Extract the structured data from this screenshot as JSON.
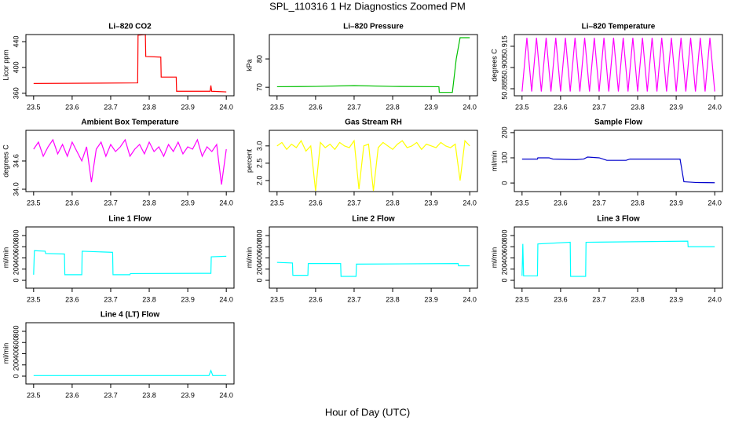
{
  "title": "SPL_110316  1 Hz Diagnostics Zoomed PM",
  "xlabel": "Hour of Day (UTC)",
  "chart_data": [
    {
      "type": "line",
      "title": "Li–820 CO2",
      "ylabel": "Licor ppm",
      "color": "#ff0000",
      "x": [
        23.5,
        23.77,
        23.771,
        23.79,
        23.791,
        23.83,
        23.831,
        23.87,
        23.871,
        23.958,
        23.96,
        23.962,
        24.0
      ],
      "values": [
        375,
        376,
        450,
        451,
        417,
        416,
        385,
        385,
        363,
        363,
        372,
        363,
        362
      ],
      "xlim": [
        23.48,
        24.02
      ],
      "ylim": [
        356,
        451
      ],
      "xticks": [
        23.5,
        23.6,
        23.7,
        23.8,
        23.9,
        {
          "value": 24,
          "label": "24.0"
        }
      ],
      "yticks": [
        360,
        400,
        440
      ]
    },
    {
      "type": "line",
      "title": "Li–820 Pressure",
      "ylabel": "kPa",
      "color": "#00c000",
      "x": [
        23.5,
        23.6,
        23.7,
        23.8,
        23.92,
        23.921,
        23.955,
        23.965,
        23.975,
        24.0
      ],
      "values": [
        70.2,
        70.3,
        70.6,
        70.3,
        70.2,
        68.2,
        68.2,
        80,
        87.5,
        87.5
      ],
      "xlim": [
        23.48,
        24.02
      ],
      "ylim": [
        67,
        88.6
      ],
      "xticks": [
        23.5,
        23.6,
        23.7,
        23.8,
        23.9,
        {
          "value": 24,
          "label": "24.0"
        }
      ],
      "yticks": [
        70,
        80
      ]
    },
    {
      "type": "line",
      "title": "Li–820 Temperature",
      "ylabel": "degrees C",
      "color": "#ff00ff",
      "x": [
        23.5,
        23.5125,
        23.525,
        23.5375,
        23.55,
        23.5625,
        23.575,
        23.5875,
        23.6,
        23.6125,
        23.625,
        23.6375,
        23.65,
        23.6625,
        23.675,
        23.6875,
        23.7,
        23.7125,
        23.725,
        23.7375,
        23.75,
        23.7625,
        23.775,
        23.7875,
        23.8,
        23.8125,
        23.825,
        23.8375,
        23.85,
        23.8625,
        23.875,
        23.8875,
        23.9,
        23.9125,
        23.925,
        23.9375,
        23.95,
        23.9625,
        23.975,
        23.9875,
        24.0
      ],
      "values": [
        50.883,
        50.921,
        50.883,
        50.921,
        50.883,
        50.921,
        50.883,
        50.921,
        50.883,
        50.921,
        50.883,
        50.921,
        50.883,
        50.921,
        50.883,
        50.921,
        50.883,
        50.921,
        50.883,
        50.921,
        50.883,
        50.921,
        50.883,
        50.921,
        50.883,
        50.921,
        50.883,
        50.921,
        50.883,
        50.921,
        50.883,
        50.921,
        50.883,
        50.921,
        50.883,
        50.921,
        50.883,
        50.921,
        50.883,
        50.921,
        50.883
      ],
      "xlim": [
        23.48,
        24.02
      ],
      "ylim": [
        50.88,
        50.9233
      ],
      "xticks": [
        23.5,
        23.6,
        23.7,
        23.8,
        23.9,
        {
          "value": 24,
          "label": "24.0"
        }
      ],
      "yticks": [
        50.885,
        {
          "value": 50.9,
          "label": "50.900"
        },
        50.915
      ]
    },
    {
      "type": "line",
      "title": "Ambient Box Temperature",
      "ylabel": "degrees C",
      "color": "#ff00ff",
      "x": [
        23.5,
        23.5125,
        23.525,
        23.5375,
        23.55,
        23.5625,
        23.575,
        23.5875,
        23.6,
        23.6125,
        23.625,
        23.6375,
        23.65,
        23.6625,
        23.675,
        23.6875,
        23.7,
        23.7125,
        23.725,
        23.7375,
        23.75,
        23.7625,
        23.775,
        23.7875,
        23.8,
        23.8125,
        23.825,
        23.8375,
        23.85,
        23.8625,
        23.875,
        23.8875,
        23.9,
        23.9125,
        23.925,
        23.9375,
        23.95,
        23.9625,
        23.975,
        23.9875,
        24.0
      ],
      "values": [
        34.85,
        35.0,
        34.7,
        34.9,
        35.05,
        34.75,
        34.95,
        34.7,
        35.0,
        34.8,
        34.6,
        34.9,
        34.15,
        34.85,
        35.0,
        34.7,
        34.95,
        34.8,
        34.9,
        35.05,
        34.7,
        34.85,
        34.95,
        34.75,
        35.0,
        34.8,
        34.9,
        34.7,
        34.95,
        34.8,
        35.0,
        34.75,
        34.9,
        34.85,
        35.05,
        34.7,
        34.9,
        34.8,
        34.95,
        34.1,
        34.85
      ],
      "xlim": [
        23.48,
        24.02
      ],
      "ylim": [
        33.95,
        35.25
      ],
      "xticks": [
        23.5,
        23.6,
        23.7,
        23.8,
        23.9,
        {
          "value": 24,
          "label": "24.0"
        }
      ],
      "yticks": [
        {
          "value": 34,
          "label": "34.0"
        },
        34.6
      ]
    },
    {
      "type": "line",
      "title": "Gas Stream RH",
      "ylabel": "percent",
      "color": "#ffff00",
      "x": [
        23.5,
        23.5125,
        23.525,
        23.5375,
        23.55,
        23.5625,
        23.575,
        23.5875,
        23.6,
        23.6125,
        23.625,
        23.6375,
        23.65,
        23.6625,
        23.675,
        23.6875,
        23.7,
        23.7125,
        23.725,
        23.7375,
        23.75,
        23.7625,
        23.775,
        23.7875,
        23.8,
        23.8125,
        23.825,
        23.8375,
        23.85,
        23.8625,
        23.875,
        23.8875,
        23.9,
        23.9125,
        23.925,
        23.9375,
        23.95,
        23.9625,
        23.975,
        23.9875,
        24.0
      ],
      "values": [
        3.0,
        3.1,
        2.9,
        3.05,
        2.95,
        3.15,
        2.85,
        3.0,
        1.7,
        3.1,
        2.95,
        3.05,
        2.9,
        3.1,
        3.0,
        2.95,
        3.15,
        1.75,
        3.0,
        3.05,
        1.7,
        2.95,
        3.1,
        3.0,
        2.9,
        3.05,
        3.15,
        2.95,
        3.0,
        3.1,
        2.9,
        3.05,
        3.0,
        2.95,
        3.1,
        3.0,
        2.95,
        3.05,
        2.0,
        3.15,
        3.0
      ],
      "xlim": [
        23.48,
        24.02
      ],
      "ylim": [
        1.68,
        3.45
      ],
      "xticks": [
        23.5,
        23.6,
        23.7,
        23.8,
        23.9,
        {
          "value": 24,
          "label": "24.0"
        }
      ],
      "yticks": [
        {
          "value": 2,
          "label": "2.0"
        },
        2.5,
        {
          "value": 3,
          "label": "3.0"
        }
      ]
    },
    {
      "type": "line",
      "title": "Sample Flow",
      "ylabel": "ml/min",
      "color": "#0000cc",
      "x": [
        23.5,
        23.54,
        23.541,
        23.57,
        23.58,
        23.64,
        23.66,
        23.67,
        23.7,
        23.72,
        23.77,
        23.78,
        23.91,
        23.92,
        23.95,
        24.0
      ],
      "values": [
        95,
        95,
        100,
        100,
        95,
        93,
        95,
        103,
        100,
        90,
        90,
        95,
        95,
        5,
        2,
        1
      ],
      "xlim": [
        23.48,
        24.02
      ],
      "ylim": [
        -34,
        209
      ],
      "xticks": [
        23.5,
        23.6,
        23.7,
        23.8,
        23.9,
        {
          "value": 24,
          "label": "24.0"
        }
      ],
      "yticks": [
        0,
        100,
        200
      ]
    },
    {
      "type": "line",
      "title": "Line 1 Flow",
      "ylabel": "ml/min",
      "color": "#00ffff",
      "x": [
        23.5,
        23.502,
        23.53,
        23.531,
        23.58,
        23.581,
        23.625,
        23.626,
        23.705,
        23.706,
        23.75,
        23.751,
        23.96,
        23.961,
        24.0
      ],
      "values": [
        100,
        530,
        520,
        480,
        470,
        100,
        100,
        520,
        500,
        100,
        100,
        120,
        125,
        420,
        430
      ],
      "xlim": [
        23.48,
        24.02
      ],
      "ylim": [
        -140,
        954
      ],
      "xticks": [
        23.5,
        23.6,
        23.7,
        23.8,
        23.9,
        {
          "value": 24,
          "label": "24.0"
        }
      ],
      "yticks": [
        0,
        200,
        400,
        600,
        800
      ]
    },
    {
      "type": "line",
      "title": "Line 2 Flow",
      "ylabel": "ml/min",
      "color": "#00ffff",
      "x": [
        23.5,
        23.502,
        23.54,
        23.541,
        23.58,
        23.581,
        23.665,
        23.666,
        23.705,
        23.706,
        23.97,
        23.971,
        24.0
      ],
      "values": [
        320,
        320,
        310,
        90,
        90,
        300,
        300,
        70,
        70,
        290,
        300,
        260,
        260
      ],
      "xlim": [
        23.48,
        24.02
      ],
      "ylim": [
        -140,
        954
      ],
      "xticks": [
        23.5,
        23.6,
        23.7,
        23.8,
        23.9,
        {
          "value": 24,
          "label": "24.0"
        }
      ],
      "yticks": [
        0,
        200,
        400,
        600,
        800
      ]
    },
    {
      "type": "line",
      "title": "Line 3 Flow",
      "ylabel": "ml/min",
      "color": "#00ffff",
      "x": [
        23.5,
        23.502,
        23.504,
        23.54,
        23.541,
        23.625,
        23.626,
        23.665,
        23.666,
        23.93,
        23.931,
        24.0
      ],
      "values": [
        80,
        650,
        80,
        80,
        650,
        680,
        70,
        70,
        680,
        700,
        600,
        600
      ],
      "xlim": [
        23.48,
        24.02
      ],
      "ylim": [
        -140,
        954
      ],
      "xticks": [
        23.5,
        23.6,
        23.7,
        23.8,
        23.9,
        {
          "value": 24,
          "label": "24.0"
        }
      ],
      "yticks": [
        0,
        200,
        400,
        600,
        800
      ]
    },
    {
      "type": "line",
      "title": "Line 4 (LT) Flow",
      "ylabel": "ml/min",
      "color": "#00ffff",
      "x": [
        23.5,
        23.955,
        23.96,
        23.965,
        24.0
      ],
      "values": [
        10,
        10,
        100,
        10,
        10
      ],
      "xlim": [
        23.48,
        24.02
      ],
      "ylim": [
        -140,
        954
      ],
      "xticks": [
        23.5,
        23.6,
        23.7,
        23.8,
        23.9,
        {
          "value": 24,
          "label": "24.0"
        }
      ],
      "yticks": [
        0,
        200,
        400,
        600,
        800
      ]
    }
  ]
}
